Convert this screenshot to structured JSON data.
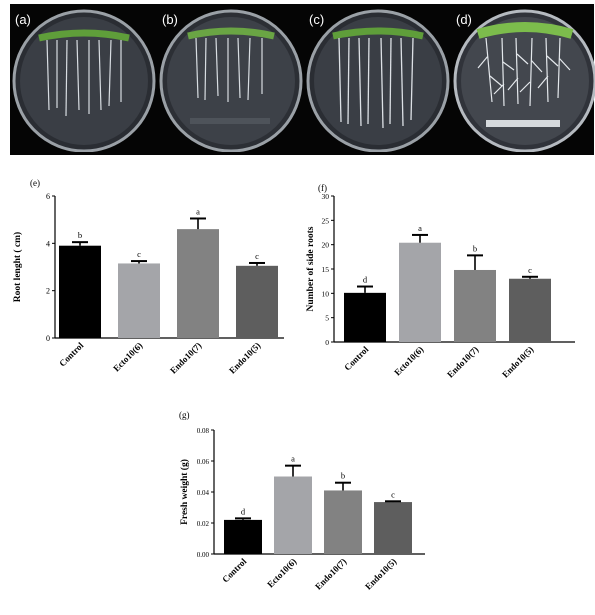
{
  "photos": {
    "panels": [
      {
        "label": "(a)"
      },
      {
        "label": "(b)"
      },
      {
        "label": "(c)"
      },
      {
        "label": "(d)"
      }
    ]
  },
  "colors": {
    "Control": "#000000",
    "Ecto10(6)": "#a4a5a9",
    "Endo10(7)": "#828282",
    "Endo10(5)": "#5e5e5e"
  },
  "chart_data": [
    {
      "type": "bar",
      "panel_label": "(e)",
      "categories": [
        "Control",
        "Ecto10(6)",
        "Endo10(7)",
        "Endo10(5)"
      ],
      "values": [
        3.9,
        3.15,
        4.6,
        3.05
      ],
      "errors": [
        0.15,
        0.1,
        0.45,
        0.12
      ],
      "significance": [
        "b",
        "c",
        "a",
        "c"
      ],
      "ylabel": "Root lenght ( cm)",
      "xlabel": "",
      "ylim": [
        0,
        6
      ],
      "yticks": [
        "0",
        "2",
        "4",
        "6"
      ],
      "grid": false
    },
    {
      "type": "bar",
      "panel_label": "(f)",
      "categories": [
        "Control",
        "Ecto10(6)",
        "Endo10(7)",
        "Endo10(5)"
      ],
      "values": [
        10.1,
        20.4,
        14.8,
        13
      ],
      "errors": [
        1.3,
        1.6,
        3.0,
        0.4
      ],
      "significance": [
        "d",
        "a",
        "b",
        "c"
      ],
      "ylabel": "Number of side roots",
      "xlabel": "",
      "ylim": [
        0,
        30
      ],
      "yticks": [
        "0",
        "5",
        "10",
        "15",
        "20",
        "25",
        "30"
      ],
      "grid": false
    },
    {
      "type": "bar",
      "panel_label": "(g)",
      "categories": [
        "Control",
        "Ecto10(6)",
        "Endo10(7)",
        "Endo10(5)"
      ],
      "values": [
        0.022,
        0.05,
        0.041,
        0.0335
      ],
      "errors": [
        0.001,
        0.007,
        0.005,
        0.0005
      ],
      "significance": [
        "d",
        "a",
        "b",
        "c"
      ],
      "ylabel": "Fresh weight (g)",
      "xlabel": "",
      "ylim": [
        0,
        0.08
      ],
      "yticks": [
        "0.00",
        "0.02",
        "0.04",
        "0.06",
        "0.08"
      ],
      "grid": false
    }
  ]
}
